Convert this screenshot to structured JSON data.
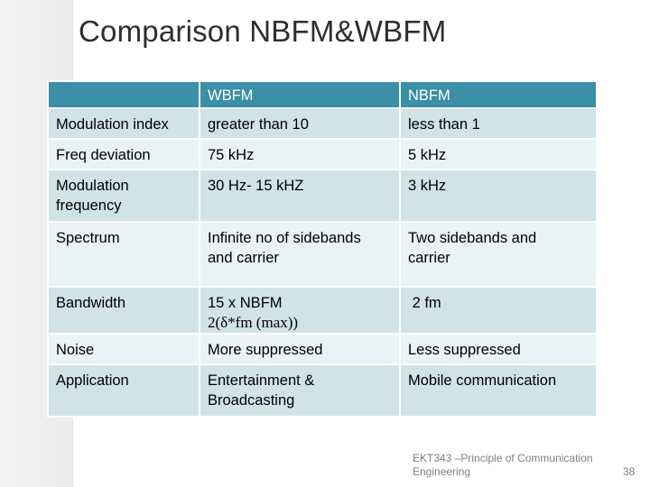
{
  "slide": {
    "title": "Comparison NBFM&WBFM",
    "footer_line1": "EKT343 –Principle of Communication",
    "footer_line2": "Engineering",
    "page_number": "38"
  },
  "table": {
    "headers": [
      "",
      "WBFM",
      "NBFM"
    ],
    "rows": [
      {
        "param": "Modulation index",
        "wbfm": "greater than 10",
        "nbfm": "less than 1"
      },
      {
        "param": "Freq deviation",
        "wbfm": "75 kHz",
        "nbfm": "5 kHz"
      },
      {
        "param_line1": "Modulation",
        "param_line2": "frequency",
        "wbfm": "30 Hz- 15 kHZ",
        "nbfm": "3 kHz"
      },
      {
        "param": "Spectrum",
        "wbfm_line1": "Infinite no of sidebands",
        "wbfm_line2": "and carrier",
        "nbfm_line1": "Two sidebands and",
        "nbfm_line2": "carrier"
      },
      {
        "param": "Bandwidth",
        "wbfm_line1": "15 x NBFM",
        "wbfm_line2": "2(δ*fm (max))",
        "nbfm": " 2 fm"
      },
      {
        "param": "Noise",
        "wbfm": "More suppressed",
        "nbfm": "Less suppressed"
      },
      {
        "param": "Application",
        "wbfm_line1": "Entertainment &",
        "wbfm_line2": "Broadcasting",
        "nbfm": "Mobile communication"
      }
    ]
  }
}
